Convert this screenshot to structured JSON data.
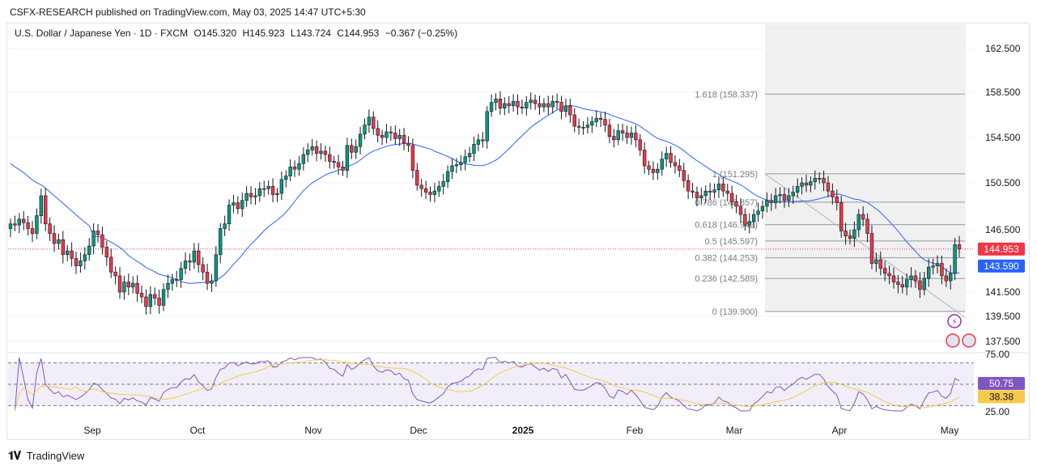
{
  "header": {
    "publisher_line": "CSFX-RESEARCH published on TradingView.com, May 03, 2025 14:47 UTC+5:30"
  },
  "legend": {
    "symbol": "U.S. Dollar / Japanese Yen · 1D · FXCM",
    "open": "O145.320",
    "high": "H145.923",
    "low": "L143.724",
    "close": "C144.953",
    "change": "−0.367 (−0.25%)"
  },
  "footer": {
    "brand": "TradingView"
  },
  "colors": {
    "up": "#089981",
    "down": "#f23645",
    "ma": "#2962ff",
    "rsi": "#7e57c2",
    "rsi_ma": "#f7c948",
    "last_price": "#f23645",
    "ma_label": "#2962ff",
    "fib_line": "#9598a1",
    "rsi_band": "#7e57c21a",
    "shade": "#f0f0f0"
  },
  "chart_data": [
    {
      "type": "candlestick",
      "title": "",
      "y_axis_ticks": [
        "162.500",
        "158.500",
        "154.500",
        "150.500",
        "146.500",
        "141.500",
        "139.500",
        "137.500"
      ],
      "y_axis_tick_values": [
        162.5,
        158.5,
        154.5,
        150.5,
        146.5,
        141.5,
        139.5,
        137.5
      ],
      "ylim": [
        136.3,
        163.8
      ],
      "x_axis_labels": [
        "Sep",
        "Oct",
        "Nov",
        "Dec",
        "2025",
        "Feb",
        "Mar",
        "Apr",
        "May"
      ],
      "last_price": {
        "label": "144.953",
        "value": 144.953
      },
      "ma_last": {
        "label": "143.590",
        "value": 143.59
      },
      "fibonacci": [
        {
          "label": "1.618 (158.337)",
          "value": 158.337
        },
        {
          "label": "1 (151.295)",
          "value": 151.295
        },
        {
          "label": "0.786 (148.857)",
          "value": 148.857
        },
        {
          "label": "0.618 (146.942)",
          "value": 146.942
        },
        {
          "label": "0.5 (145.597)",
          "value": 145.597
        },
        {
          "label": "0.382 (144.253)",
          "value": 144.253
        },
        {
          "label": "0.236 (142.589)",
          "value": 142.589
        },
        {
          "label": "0 (139.900)",
          "value": 139.9
        }
      ],
      "close_series_approx": [
        147.0,
        146.9,
        147.4,
        147.1,
        146.6,
        146.2,
        147.7,
        149.4,
        147.0,
        146.2,
        145.4,
        145.7,
        144.5,
        144.8,
        144.2,
        143.6,
        144.0,
        144.5,
        145.2,
        146.4,
        146.1,
        145.1,
        144.3,
        143.1,
        142.8,
        141.5,
        142.3,
        141.9,
        142.2,
        141.4,
        141.1,
        140.3,
        141.3,
        141.0,
        140.4,
        141.7,
        142.2,
        142.5,
        142.5,
        143.4,
        144.0,
        143.9,
        144.8,
        143.7,
        143.1,
        142.2,
        142.4,
        144.5,
        146.6,
        147.0,
        148.6,
        148.8,
        148.3,
        149.0,
        149.6,
        149.3,
        149.4,
        150.0,
        150.0,
        150.2,
        149.5,
        149.6,
        150.8,
        151.1,
        151.9,
        151.7,
        152.2,
        153.0,
        153.4,
        153.7,
        153.1,
        153.3,
        153.0,
        152.4,
        152.3,
        151.9,
        151.6,
        153.8,
        153.2,
        153.7,
        154.8,
        155.6,
        156.3,
        155.3,
        154.7,
        154.5,
        155.0,
        154.9,
        154.4,
        154.7,
        154.0,
        153.8,
        151.6,
        150.3,
        150.0,
        149.7,
        149.5,
        149.8,
        150.2,
        150.6,
        151.5,
        152.0,
        152.1,
        152.3,
        152.8,
        153.1,
        153.9,
        154.3,
        154.2,
        156.8,
        157.6,
        157.9,
        157.1,
        157.5,
        157.3,
        157.7,
        157.2,
        157.1,
        157.6,
        157.8,
        157.5,
        157.2,
        157.5,
        157.2,
        157.7,
        157.6,
        156.8,
        157.3,
        156.5,
        155.5,
        155.4,
        155.4,
        155.6,
        155.9,
        156.2,
        156.1,
        155.6,
        154.6,
        154.3,
        155.1,
        154.9,
        154.5,
        154.9,
        154.3,
        153.4,
        152.0,
        151.7,
        151.4,
        151.7,
        152.6,
        153.1,
        152.3,
        152.0,
        151.6,
        150.7,
        149.8,
        149.7,
        149.2,
        149.4,
        149.8,
        149.7,
        149.9,
        150.4,
        149.8,
        149.6,
        148.9,
        148.5,
        147.8,
        146.9,
        147.2,
        147.8,
        148.1,
        148.5,
        149.0,
        148.8,
        149.4,
        149.5,
        149.0,
        149.4,
        149.7,
        150.2,
        150.5,
        150.3,
        150.6,
        150.9,
        150.9,
        150.5,
        149.8,
        149.3,
        148.8,
        146.4,
        146.0,
        145.8,
        146.5,
        147.8,
        147.4,
        146.2,
        143.8,
        144.1,
        143.4,
        143.0,
        142.8,
        142.3,
        142.1,
        141.9,
        142.5,
        142.8,
        142.4,
        141.7,
        142.6,
        143.5,
        143.6,
        143.8,
        142.8,
        142.4,
        143.0,
        145.3,
        144.953
      ]
    },
    {
      "type": "line",
      "title": "",
      "y_axis_ticks": [
        "75.00",
        "25.00"
      ],
      "ylim": [
        22,
        78
      ],
      "rsi_last": {
        "label": "50.75",
        "value": 50.75
      },
      "rsi_ma_last": {
        "label": "38.38",
        "value": 38.38
      },
      "levels": [
        70,
        50,
        30
      ]
    }
  ]
}
